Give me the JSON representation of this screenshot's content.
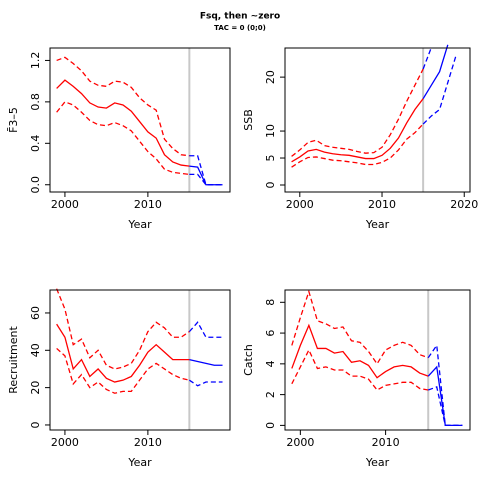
{
  "title": "Fsq, then ~zero",
  "subtitle": "TAC = 0 (0;0)",
  "chart_data": [
    {
      "type": "line",
      "ylabel": "F̄3–5",
      "xlabel": "Year",
      "x": [
        1999,
        2000,
        2001,
        2002,
        2003,
        2004,
        2005,
        2006,
        2007,
        2008,
        2009,
        2010,
        2011,
        2012,
        2013,
        2014,
        2015,
        2016,
        2017,
        2018,
        2019
      ],
      "xlim": [
        1998.2,
        2019.9
      ],
      "xticks": [
        2000,
        2010
      ],
      "ylim": [
        -0.07,
        1.32
      ],
      "yticks": [
        {
          "value": 0,
          "label": "0.0"
        },
        {
          "value": 0.4,
          "label": "0.4"
        },
        {
          "value": 0.8,
          "label": "0.8"
        },
        {
          "value": 1.2,
          "label": "1.2"
        }
      ],
      "vline": 2015,
      "vline_color": "#c8c8c8",
      "series": [
        {
          "color": "#ff0000",
          "dashed": false,
          "values": [
            0.93,
            1.01,
            0.95,
            0.88,
            0.79,
            0.75,
            0.74,
            0.79,
            0.77,
            0.71,
            0.61,
            0.51,
            0.45,
            0.29,
            0.22,
            0.19,
            0.18,
            null,
            null,
            null,
            null
          ]
        },
        {
          "color": "#ff0000",
          "dashed": true,
          "values": [
            1.2,
            1.23,
            1.17,
            1.1,
            1.0,
            0.96,
            0.95,
            1.0,
            0.99,
            0.94,
            0.84,
            0.77,
            0.72,
            0.44,
            0.35,
            0.29,
            0.28,
            null,
            null,
            null,
            null
          ]
        },
        {
          "color": "#ff0000",
          "dashed": true,
          "values": [
            0.7,
            0.8,
            0.77,
            0.7,
            0.62,
            0.58,
            0.57,
            0.6,
            0.57,
            0.52,
            0.42,
            0.32,
            0.25,
            0.15,
            0.12,
            0.11,
            0.1,
            null,
            null,
            null,
            null
          ]
        },
        {
          "color": "#0000ff",
          "dashed": false,
          "values": [
            null,
            null,
            null,
            null,
            null,
            null,
            null,
            null,
            null,
            null,
            null,
            null,
            null,
            null,
            null,
            null,
            0.18,
            0.17,
            0,
            0,
            0
          ]
        },
        {
          "color": "#0000ff",
          "dashed": true,
          "values": [
            null,
            null,
            null,
            null,
            null,
            null,
            null,
            null,
            null,
            null,
            null,
            null,
            null,
            null,
            null,
            null,
            0.28,
            0.28,
            0,
            0,
            0
          ]
        },
        {
          "color": "#0000ff",
          "dashed": true,
          "values": [
            null,
            null,
            null,
            null,
            null,
            null,
            null,
            null,
            null,
            null,
            null,
            null,
            null,
            null,
            null,
            null,
            0.1,
            0.1,
            0,
            0,
            0
          ]
        }
      ]
    },
    {
      "type": "line",
      "ylabel": "SSB",
      "xlabel": "Year",
      "x": [
        1999,
        2000,
        2001,
        2002,
        2003,
        2004,
        2005,
        2006,
        2007,
        2008,
        2009,
        2010,
        2011,
        2012,
        2013,
        2014,
        2015,
        2016,
        2017,
        2018,
        2019
      ],
      "xlim": [
        1998.2,
        2020.7
      ],
      "xticks": [
        2000,
        2010,
        2020
      ],
      "ylim": [
        -1.3,
        25.4
      ],
      "yticks": [
        0,
        5,
        10,
        20
      ],
      "vline": 2015,
      "vline_color": "#c8c8c8",
      "series": [
        {
          "color": "#ff0000",
          "dashed": false,
          "values": [
            4.3,
            5.2,
            6.3,
            6.6,
            6.1,
            5.8,
            5.6,
            5.5,
            5.2,
            4.9,
            4.9,
            5.5,
            6.8,
            8.7,
            11.5,
            14,
            16,
            null,
            null,
            null,
            null
          ]
        },
        {
          "color": "#ff0000",
          "dashed": true,
          "values": [
            5.3,
            6.5,
            7.9,
            8.3,
            7.3,
            7,
            6.8,
            6.6,
            6.2,
            5.9,
            6,
            7,
            9.3,
            12.2,
            15.5,
            18.5,
            21.5,
            null,
            null,
            null,
            null
          ]
        },
        {
          "color": "#ff0000",
          "dashed": true,
          "values": [
            3.3,
            4.3,
            5.1,
            5.2,
            4.9,
            4.6,
            4.5,
            4.3,
            4.1,
            3.8,
            3.8,
            4.2,
            5,
            6.5,
            8.5,
            9.7,
            11.3,
            null,
            null,
            null,
            null
          ]
        },
        {
          "color": "#0000ff",
          "dashed": false,
          "values": [
            null,
            null,
            null,
            null,
            null,
            null,
            null,
            null,
            null,
            null,
            null,
            null,
            null,
            null,
            null,
            null,
            16,
            18.5,
            21,
            26,
            null
          ]
        },
        {
          "color": "#0000ff",
          "dashed": true,
          "values": [
            null,
            null,
            null,
            null,
            null,
            null,
            null,
            null,
            null,
            null,
            null,
            null,
            null,
            null,
            null,
            null,
            21.5,
            25.5,
            null,
            null,
            null
          ]
        },
        {
          "color": "#0000ff",
          "dashed": true,
          "values": [
            null,
            null,
            null,
            null,
            null,
            null,
            null,
            null,
            null,
            null,
            null,
            null,
            null,
            null,
            null,
            null,
            11.3,
            12.8,
            14,
            19,
            24
          ]
        }
      ]
    },
    {
      "type": "line",
      "ylabel": "Recruitment",
      "xlabel": "Year",
      "x": [
        1999,
        2000,
        2001,
        2002,
        2003,
        2004,
        2005,
        2006,
        2007,
        2008,
        2009,
        2010,
        2011,
        2012,
        2013,
        2014,
        2015,
        2016,
        2017,
        2018,
        2019
      ],
      "xlim": [
        1998.2,
        2019.9
      ],
      "xticks": [
        2000,
        2010
      ],
      "ylim": [
        -2.7,
        72.3
      ],
      "yticks": [
        0,
        20,
        40,
        60
      ],
      "vline": 2015,
      "vline_color": "#c8c8c8",
      "series": [
        {
          "color": "#ff0000",
          "dashed": false,
          "values": [
            54,
            47,
            30,
            35,
            26,
            30,
            25,
            23,
            24,
            26,
            32,
            39,
            43,
            39,
            35,
            35,
            35,
            null,
            null,
            null,
            null
          ]
        },
        {
          "color": "#ff0000",
          "dashed": true,
          "values": [
            73,
            62,
            43,
            46,
            36,
            40,
            32,
            30,
            31,
            33,
            40,
            50,
            55,
            52,
            47,
            47,
            50,
            null,
            null,
            null,
            null
          ]
        },
        {
          "color": "#ff0000",
          "dashed": true,
          "values": [
            41,
            37,
            22,
            27,
            20,
            23,
            19,
            17,
            18,
            18,
            24,
            30,
            33,
            30,
            27,
            25,
            24,
            null,
            null,
            null,
            null
          ]
        },
        {
          "color": "#0000ff",
          "dashed": false,
          "values": [
            null,
            null,
            null,
            null,
            null,
            null,
            null,
            null,
            null,
            null,
            null,
            null,
            null,
            null,
            null,
            null,
            35,
            34,
            33,
            32,
            32
          ]
        },
        {
          "color": "#0000ff",
          "dashed": true,
          "values": [
            null,
            null,
            null,
            null,
            null,
            null,
            null,
            null,
            null,
            null,
            null,
            null,
            null,
            null,
            null,
            null,
            50,
            55,
            47,
            47,
            47
          ]
        },
        {
          "color": "#0000ff",
          "dashed": true,
          "values": [
            null,
            null,
            null,
            null,
            null,
            null,
            null,
            null,
            null,
            null,
            null,
            null,
            null,
            null,
            null,
            null,
            24,
            21,
            23,
            23,
            23
          ]
        }
      ]
    },
    {
      "type": "line",
      "ylabel": "Catch",
      "xlabel": "Year",
      "x": [
        1999,
        2000,
        2001,
        2002,
        2003,
        2004,
        2005,
        2006,
        2007,
        2008,
        2009,
        2010,
        2011,
        2012,
        2013,
        2014,
        2015,
        2016,
        2017,
        2018,
        2019
      ],
      "xlim": [
        1998.2,
        2019.9
      ],
      "xticks": [
        2000,
        2010
      ],
      "ylim": [
        -0.3,
        8.8
      ],
      "yticks": [
        0,
        2,
        4,
        6,
        8
      ],
      "vline": 2015,
      "vline_color": "#c8c8c8",
      "series": [
        {
          "color": "#ff0000",
          "dashed": false,
          "values": [
            3.7,
            5.2,
            6.5,
            5.0,
            5.0,
            4.7,
            4.8,
            4.1,
            4.2,
            3.9,
            3.1,
            3.5,
            3.8,
            3.9,
            3.8,
            3.4,
            3.2,
            null,
            null,
            null,
            null
          ]
        },
        {
          "color": "#ff0000",
          "dashed": true,
          "values": [
            5.2,
            7.0,
            8.7,
            6.8,
            6.6,
            6.3,
            6.4,
            5.5,
            5.4,
            4.8,
            4.0,
            4.9,
            5.2,
            5.4,
            5.2,
            4.6,
            4.4,
            null,
            null,
            null,
            null
          ]
        },
        {
          "color": "#ff0000",
          "dashed": true,
          "values": [
            2.7,
            3.8,
            4.9,
            3.7,
            3.8,
            3.6,
            3.6,
            3.2,
            3.2,
            3.0,
            2.3,
            2.6,
            2.7,
            2.8,
            2.8,
            2.4,
            2.3,
            null,
            null,
            null,
            null
          ]
        },
        {
          "color": "#0000ff",
          "dashed": false,
          "values": [
            null,
            null,
            null,
            null,
            null,
            null,
            null,
            null,
            null,
            null,
            null,
            null,
            null,
            null,
            null,
            null,
            3.2,
            3.8,
            0,
            0,
            0
          ]
        },
        {
          "color": "#0000ff",
          "dashed": true,
          "values": [
            null,
            null,
            null,
            null,
            null,
            null,
            null,
            null,
            null,
            null,
            null,
            null,
            null,
            null,
            null,
            null,
            4.4,
            5.2,
            0,
            0,
            0
          ]
        },
        {
          "color": "#0000ff",
          "dashed": true,
          "values": [
            null,
            null,
            null,
            null,
            null,
            null,
            null,
            null,
            null,
            null,
            null,
            null,
            null,
            null,
            null,
            null,
            2.3,
            2.5,
            0,
            0,
            0
          ]
        }
      ]
    }
  ]
}
